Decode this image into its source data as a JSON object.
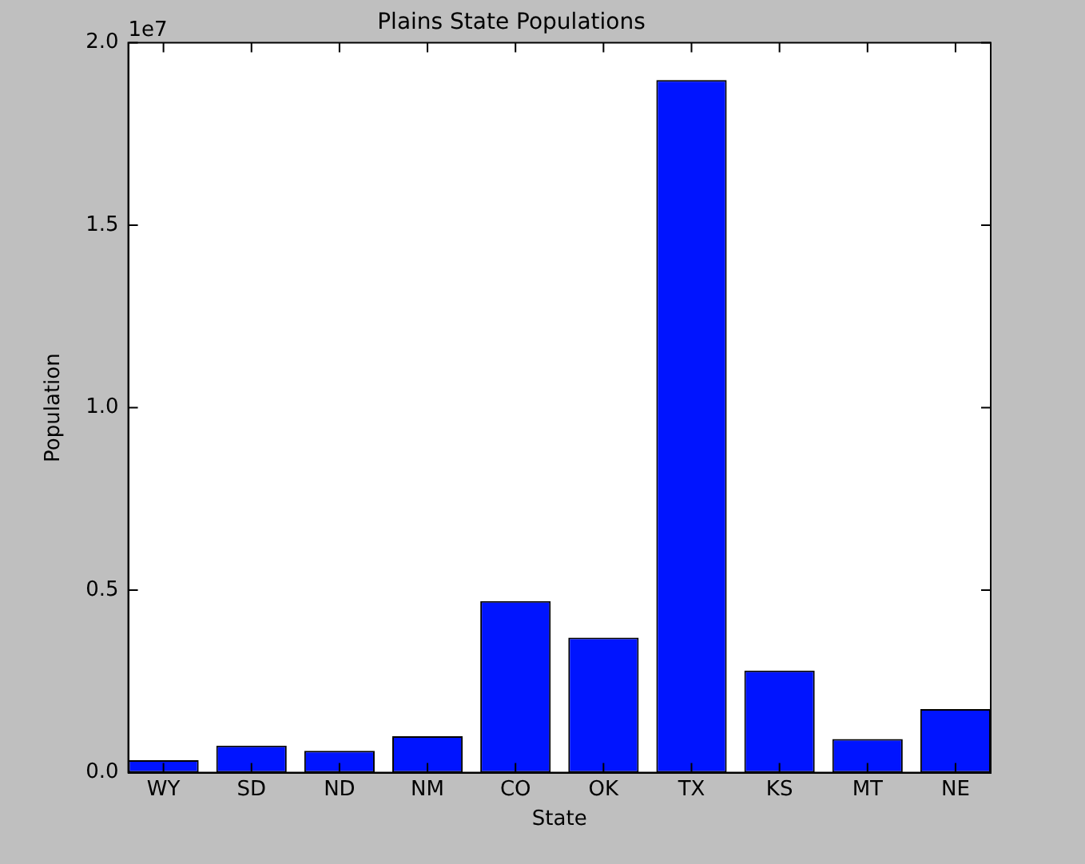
{
  "chart_data": {
    "type": "bar",
    "title": "Plains State Populations",
    "xlabel": "State",
    "ylabel": "Population",
    "categories": [
      "WY",
      "SD",
      "ND",
      "NM",
      "CO",
      "OK",
      "TX",
      "KS",
      "MT",
      "NE"
    ],
    "values": [
      0.034,
      0.074,
      0.06,
      0.1,
      0.47,
      0.37,
      1.898,
      0.28,
      0.092,
      0.174
    ],
    "color": "#0014ff",
    "ylim": [
      0,
      2
    ],
    "yticks": [
      {
        "value": 0,
        "label": "0.0"
      },
      {
        "value": 0.5,
        "label": "0.5"
      },
      {
        "value": 1,
        "label": "1.0"
      },
      {
        "value": 1.5,
        "label": "1.5"
      },
      {
        "value": 2,
        "label": "2.0"
      }
    ],
    "annotations": [
      "1e7"
    ],
    "grid": false,
    "legend": false
  }
}
